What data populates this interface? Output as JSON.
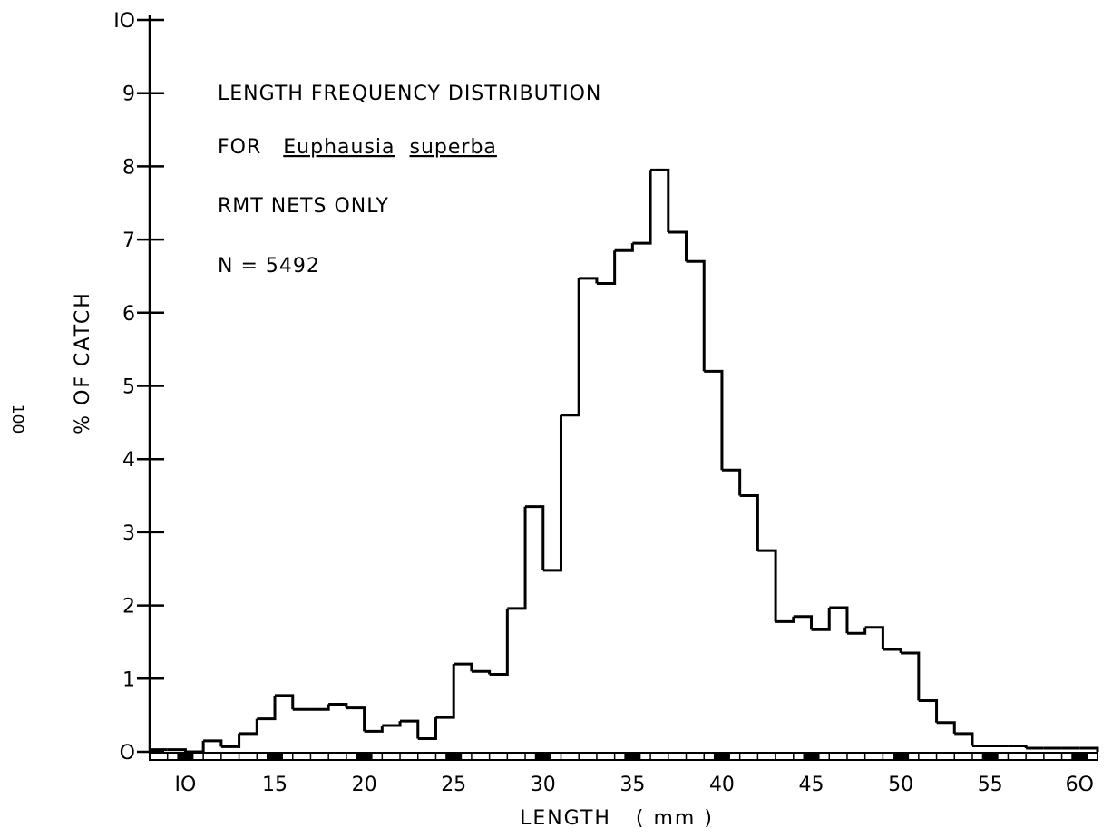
{
  "page_number": "100",
  "chart_data": {
    "type": "histogram",
    "title_lines": {
      "line1": "LENGTH FREQUENCY DISTRIBUTION",
      "line2_prefix": "FOR",
      "genus": "Euphausia",
      "species": "superba",
      "line3": "RMT NETS ONLY",
      "line4": "N = 5492"
    },
    "xlabel": "LENGTH   ( mm )",
    "ylabel": "%  OF CATCH",
    "xlim": [
      8,
      61
    ],
    "ylim": [
      0,
      10
    ],
    "xticks": [
      10,
      15,
      20,
      25,
      30,
      35,
      40,
      45,
      50,
      55,
      60
    ],
    "xtick_labels": [
      "IO",
      "15",
      "20",
      "25",
      "30",
      "35",
      "40",
      "45",
      "50",
      "55",
      "6O"
    ],
    "yticks": [
      0,
      1,
      2,
      3,
      4,
      5,
      6,
      7,
      8,
      9,
      10
    ],
    "ytick_labels": [
      "O",
      "1",
      "2",
      "3",
      "4",
      "5",
      "6",
      "7",
      "8",
      "9",
      "IO"
    ],
    "bin_width": 1,
    "bin_starts": [
      8,
      9,
      10,
      11,
      12,
      13,
      14,
      15,
      16,
      17,
      18,
      19,
      20,
      21,
      22,
      23,
      24,
      25,
      26,
      27,
      28,
      29,
      30,
      31,
      32,
      33,
      34,
      35,
      36,
      37,
      38,
      39,
      40,
      41,
      42,
      43,
      44,
      45,
      46,
      47,
      48,
      49,
      50,
      51,
      52,
      53,
      54,
      55,
      56,
      57,
      58,
      59,
      60
    ],
    "values": [
      0.03,
      0.03,
      0.0,
      0.15,
      0.07,
      0.25,
      0.45,
      0.77,
      0.58,
      0.58,
      0.65,
      0.6,
      0.28,
      0.36,
      0.42,
      0.18,
      0.47,
      1.2,
      1.1,
      1.06,
      1.96,
      3.35,
      2.48,
      4.6,
      6.47,
      6.4,
      6.85,
      6.95,
      7.95,
      7.1,
      6.7,
      5.2,
      3.85,
      3.5,
      2.75,
      1.78,
      1.85,
      1.67,
      1.97,
      1.62,
      1.7,
      1.4,
      1.35,
      0.7,
      0.4,
      0.25,
      0.08,
      0.08,
      0.08,
      0.05,
      0.05,
      0.05,
      0.05
    ]
  }
}
